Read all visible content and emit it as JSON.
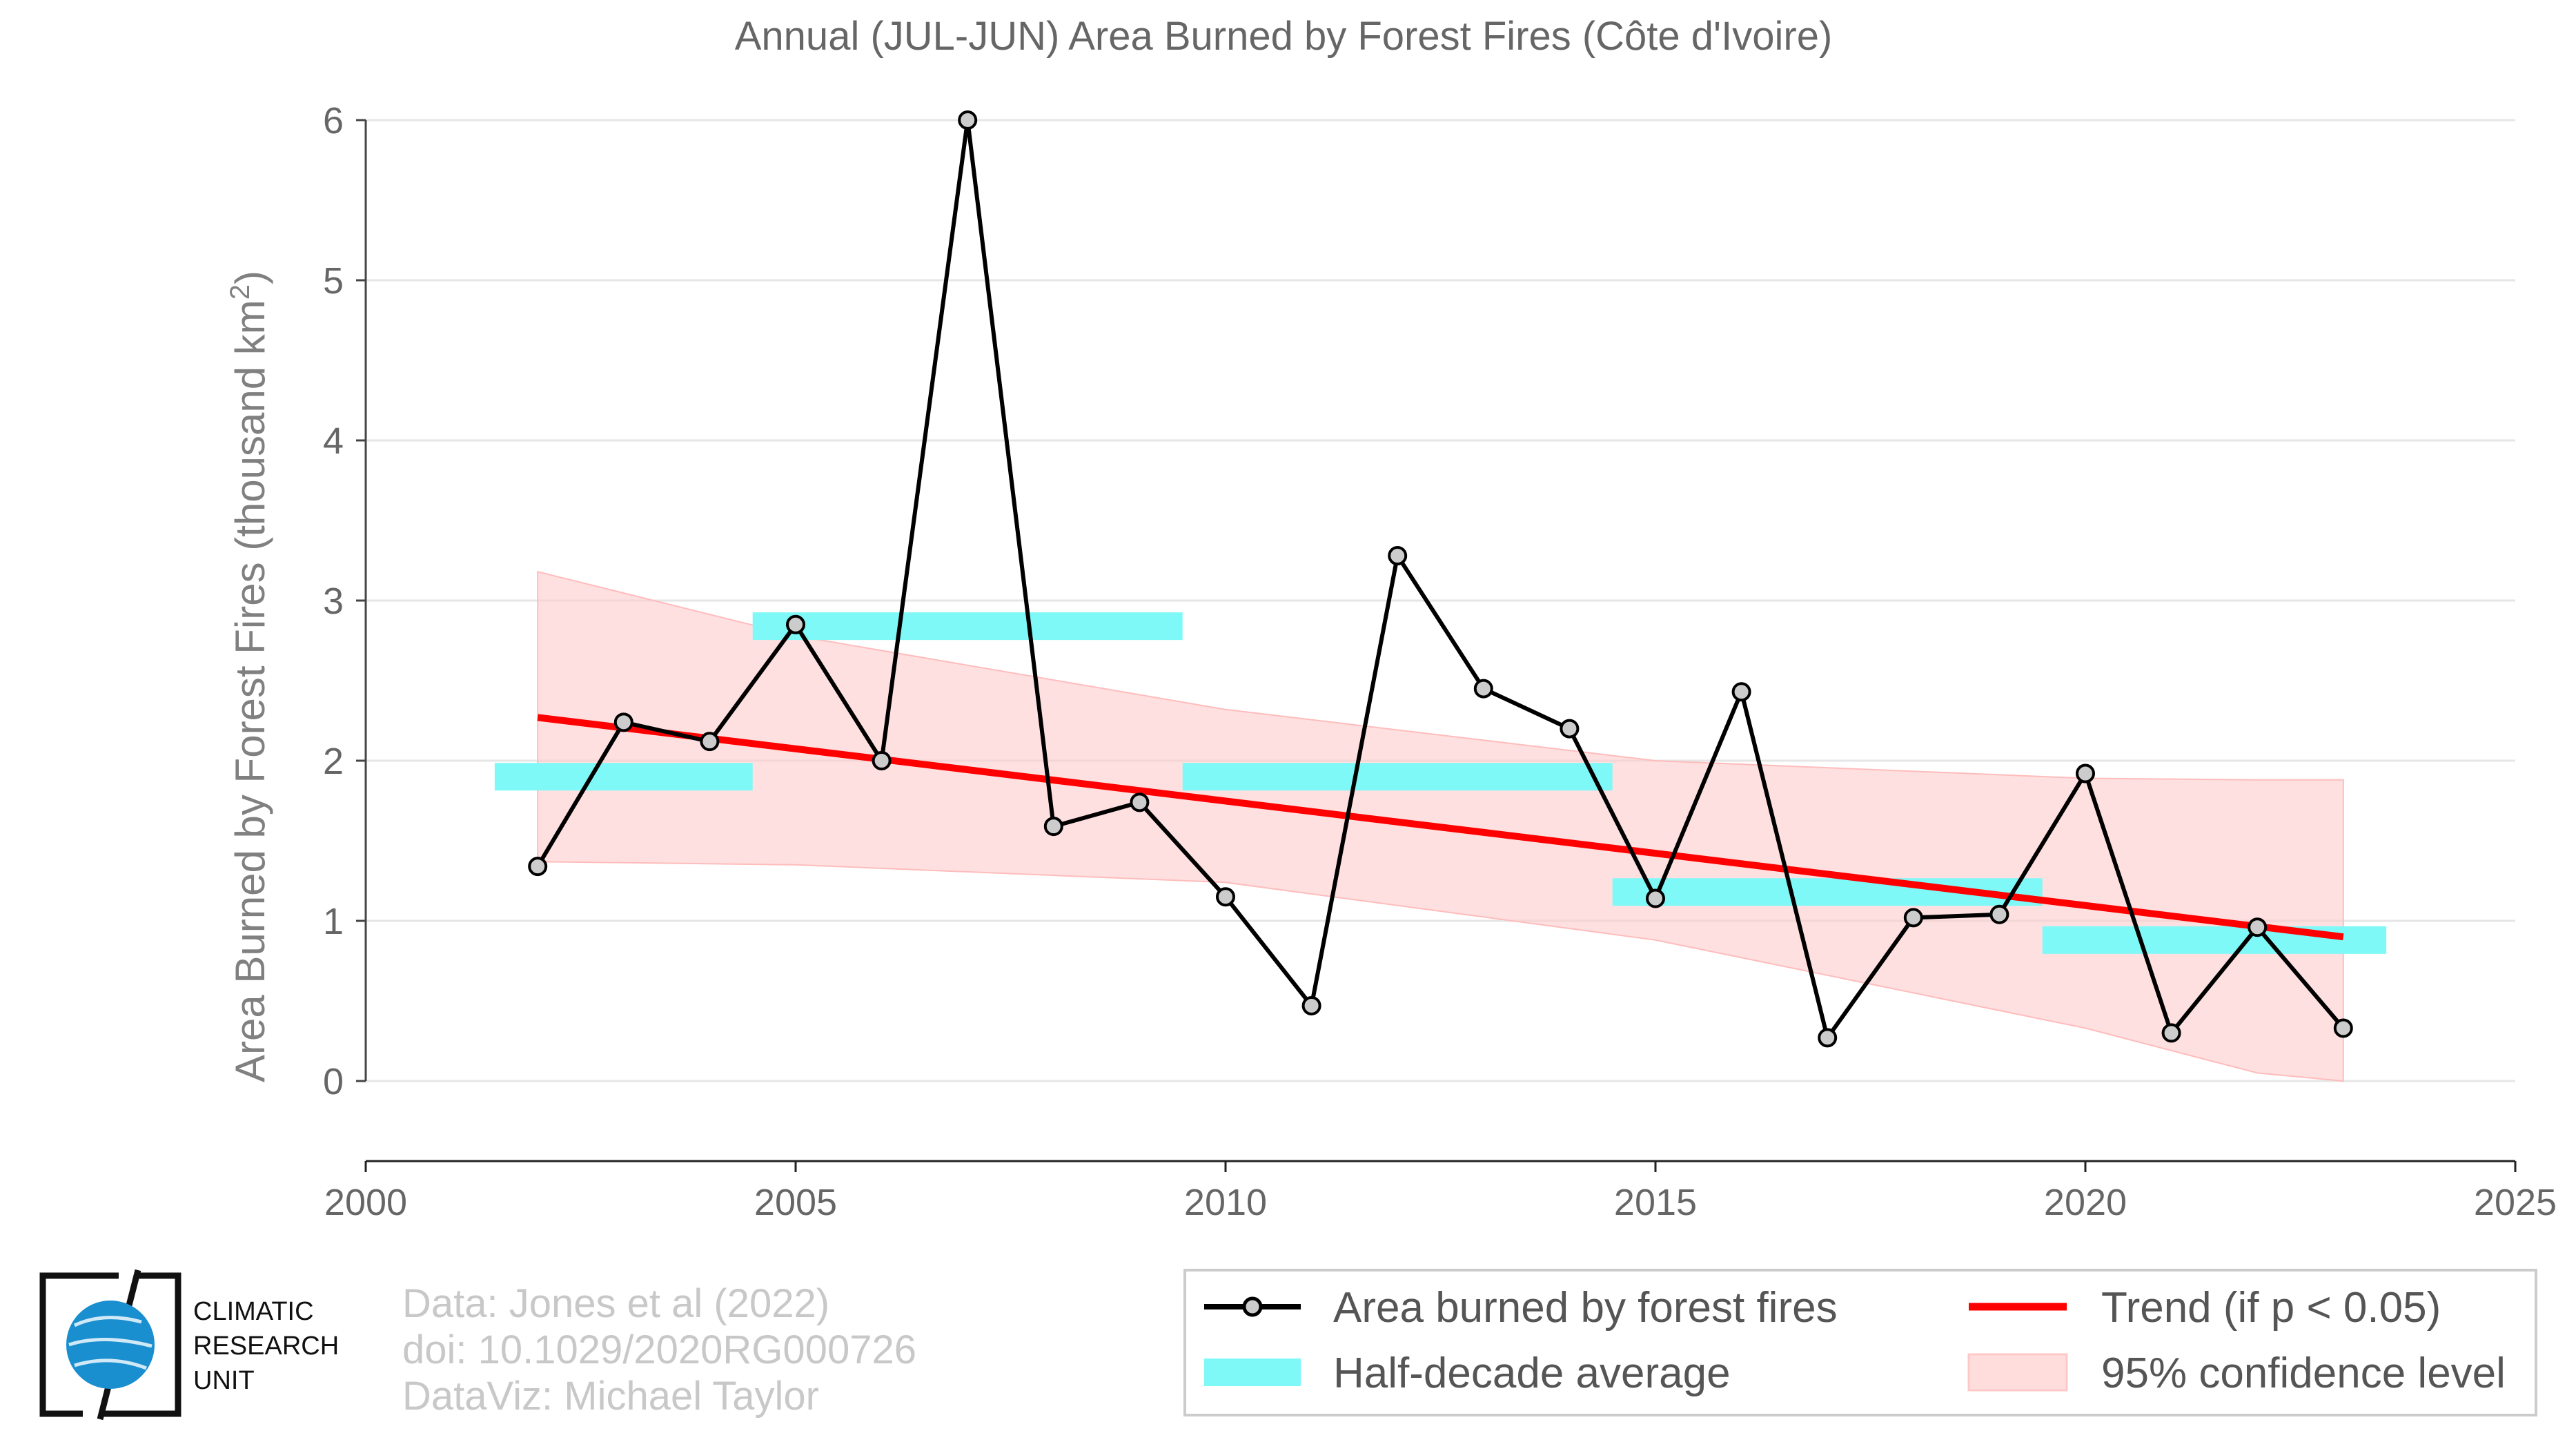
{
  "chart_data": {
    "type": "line",
    "title": "Annual (JUL-JUN) Area Burned by Forest Fires (Côte d'Ivoire)",
    "ylabel_main": "Area Burned by Forest Fires (thousand km",
    "ylabel_sup": "2",
    "ylabel_end": ")",
    "xlim": [
      2000,
      2025
    ],
    "ylim": [
      0,
      6
    ],
    "x_ticks": [
      "2000",
      "2005",
      "2010",
      "2015",
      "2020",
      "2025"
    ],
    "y_ticks": [
      "0",
      "1",
      "2",
      "3",
      "4",
      "5",
      "6"
    ],
    "grid": "horizontal",
    "series": [
      {
        "name": "Area burned by forest fires",
        "x": [
          2002,
          2003,
          2004,
          2005,
          2006,
          2007,
          2008,
          2009,
          2010,
          2011,
          2012,
          2013,
          2014,
          2015,
          2016,
          2017,
          2018,
          2019,
          2020,
          2021,
          2022,
          2023
        ],
        "values": [
          1.34,
          2.24,
          2.12,
          2.85,
          2.0,
          6.0,
          1.59,
          1.74,
          1.15,
          0.47,
          3.28,
          2.45,
          2.2,
          1.14,
          2.43,
          0.27,
          1.02,
          1.04,
          1.92,
          0.3,
          0.96,
          0.33
        ],
        "color": "#000000"
      }
    ],
    "half_decade_average": {
      "name": "Half-decade average",
      "color": "#7ff8f8",
      "segments": [
        {
          "x0": 2001.5,
          "x1": 2004.5,
          "value": 1.9
        },
        {
          "x0": 2004.5,
          "x1": 2009.5,
          "value": 2.84
        },
        {
          "x0": 2009.5,
          "x1": 2014.5,
          "value": 1.9
        },
        {
          "x0": 2014.5,
          "x1": 2019.5,
          "value": 1.18
        },
        {
          "x0": 2019.5,
          "x1": 2023.5,
          "value": 0.88
        }
      ]
    },
    "trend": {
      "name": "Trend (if p < 0.05)",
      "color": "#ff0000",
      "x": [
        2002,
        2023
      ],
      "values": [
        2.27,
        0.9
      ]
    },
    "confidence": {
      "name": "95% confidence level",
      "color": "#ffcccc",
      "x": [
        2002,
        2005,
        2010,
        2015,
        2020,
        2022,
        2023
      ],
      "upper": [
        3.18,
        2.78,
        2.32,
        2.0,
        1.89,
        1.88,
        1.88
      ],
      "lower": [
        1.37,
        1.35,
        1.24,
        0.88,
        0.33,
        0.05,
        0.0
      ]
    },
    "legend_placement": "bottom-right"
  },
  "credits": {
    "line1": "Data: Jones et al (2022)",
    "line2": "doi: 10.1029/2020RG000726",
    "line3": "DataViz: Michael Taylor"
  },
  "logo": {
    "line1": "CLIMATIC",
    "line2": "RESEARCH",
    "line3": "UNIT",
    "color": "#1a8fd0"
  }
}
